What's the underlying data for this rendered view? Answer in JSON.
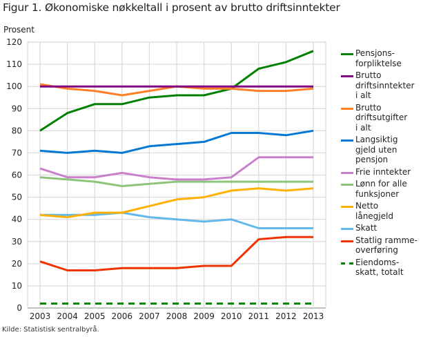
{
  "header": {
    "title": "Figur 1. Økonomiske nøkkeltall i prosent av brutto driftsinntekter",
    "y_unit": "Prosent"
  },
  "footer": {
    "source": "Kilde: Statistisk sentralbyrå."
  },
  "chart_data": {
    "type": "line",
    "title": "Figur 1. Økonomiske nøkkeltall i prosent av brutto driftsinntekter",
    "xlabel": "",
    "ylabel": "Prosent",
    "ylim": [
      0,
      120
    ],
    "yticks": [
      0,
      10,
      20,
      30,
      40,
      50,
      60,
      70,
      80,
      90,
      100,
      110,
      120
    ],
    "grid": true,
    "legend_position": "right",
    "categories": [
      "2003",
      "2004",
      "2005",
      "2006",
      "2007",
      "2008",
      "2009",
      "2010",
      "2011",
      "2012",
      "2013"
    ],
    "series": [
      {
        "name": "Pensjons-\nforpliktelse",
        "color": "#008000",
        "dashed": false,
        "values": [
          80,
          88,
          92,
          92,
          95,
          96,
          96,
          99,
          108,
          111,
          116
        ]
      },
      {
        "name": "Brutto\ndriftsinntekter\ni alt",
        "color": "#800080",
        "dashed": false,
        "values": [
          100,
          100,
          100,
          100,
          100,
          100,
          100,
          100,
          100,
          100,
          100
        ]
      },
      {
        "name": "Brutto\ndriftsutgifter\ni alt",
        "color": "#ff7f27",
        "dashed": false,
        "values": [
          101,
          99,
          98,
          96,
          98,
          100,
          99,
          99,
          98,
          98,
          99
        ]
      },
      {
        "name": "Langsiktig\ngjeld uten\npensjon",
        "color": "#0078d4",
        "dashed": false,
        "values": [
          71,
          70,
          71,
          70,
          73,
          74,
          75,
          79,
          79,
          78,
          80
        ]
      },
      {
        "name": "Frie inntekter",
        "color": "#c97fcc",
        "dashed": false,
        "values": [
          63,
          59,
          59,
          61,
          59,
          58,
          58,
          59,
          68,
          68,
          68
        ]
      },
      {
        "name": "Lønn for alle\nfunksjoner",
        "color": "#8dc47a",
        "dashed": false,
        "values": [
          59,
          58,
          57,
          55,
          56,
          57,
          57,
          57,
          57,
          57,
          57
        ]
      },
      {
        "name": "Netto\nlånegjeld",
        "color": "#ffb000",
        "dashed": false,
        "values": [
          42,
          41,
          43,
          43,
          46,
          49,
          50,
          53,
          54,
          53,
          54
        ]
      },
      {
        "name": "Skatt",
        "color": "#63b8ea",
        "dashed": false,
        "values": [
          42,
          42,
          42,
          43,
          41,
          40,
          39,
          40,
          36,
          36,
          36
        ]
      },
      {
        "name": "Statlig ramme-\noverføring",
        "color": "#ee3300",
        "dashed": false,
        "values": [
          21,
          17,
          17,
          18,
          18,
          18,
          19,
          19,
          31,
          32,
          32
        ]
      },
      {
        "name": "Eiendoms-\nskatt, totalt",
        "color": "#008000",
        "dashed": true,
        "values": [
          2,
          2,
          2,
          2,
          2,
          2,
          2,
          2,
          2,
          2,
          2
        ]
      }
    ]
  }
}
